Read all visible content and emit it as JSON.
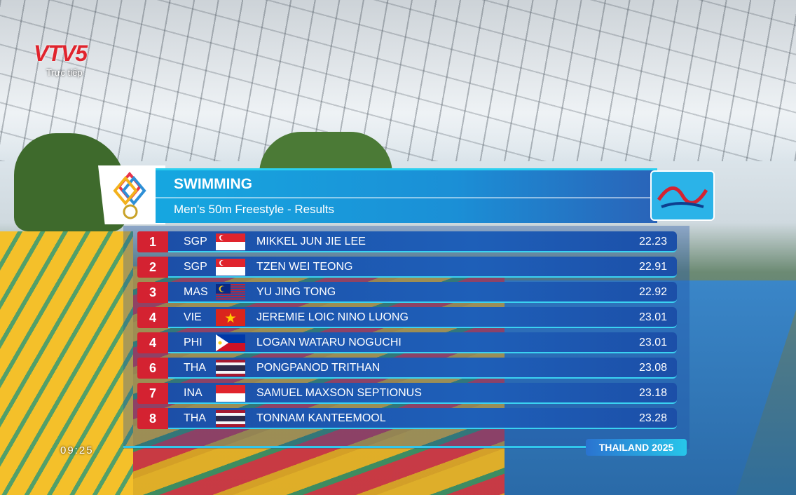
{
  "broadcast": {
    "channel": "VTV5",
    "status": "Trực tiếp",
    "clock": "09:25"
  },
  "header": {
    "sport": "SWIMMING",
    "event": "Men's 50m Freestyle - Results"
  },
  "table": {
    "rows": [
      [
        "1",
        "SGP",
        "MIKKEL JUN JIE LEE",
        "22.23"
      ],
      [
        "2",
        "SGP",
        "TZEN WEI TEONG",
        "22.91"
      ],
      [
        "3",
        "MAS",
        "YU JING TONG",
        "22.92"
      ],
      [
        "4",
        "VIE",
        "JEREMIE LOIC NINO LUONG",
        "23.01"
      ],
      [
        "4",
        "PHI",
        "LOGAN WATARU NOGUCHI",
        "23.01"
      ],
      [
        "6",
        "THA",
        "PONGPANOD TRITHAN",
        "23.08"
      ],
      [
        "7",
        "INA",
        "SAMUEL MAXSON SEPTIONUS",
        "23.18"
      ],
      [
        "8",
        "THA",
        "TONNAM KANTEEMOOL",
        "23.28"
      ]
    ]
  },
  "footer": {
    "games": "THAILAND 2025"
  }
}
